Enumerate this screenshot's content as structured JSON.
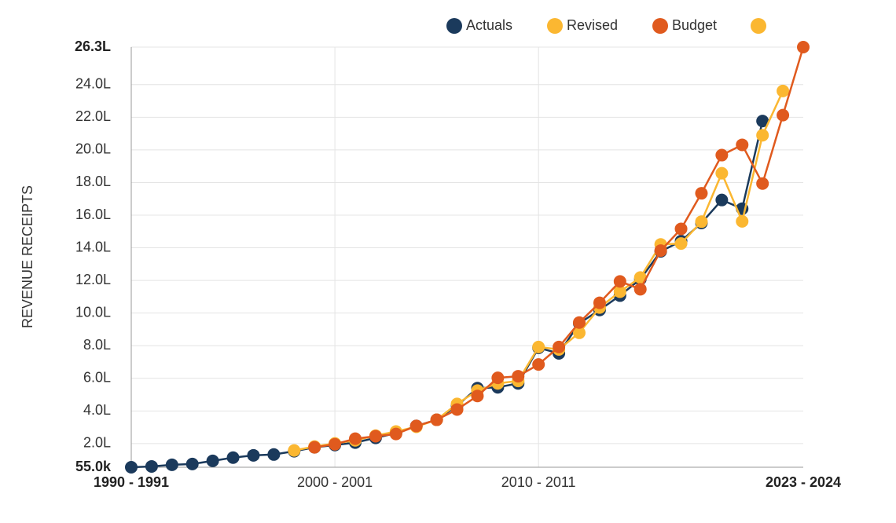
{
  "chart_data": {
    "type": "line",
    "y_label": "REVENUE RECEIPTS",
    "categories": [
      "1990 - 1991",
      null,
      null,
      null,
      null,
      null,
      null,
      null,
      null,
      null,
      "2000 - 2001",
      null,
      null,
      null,
      null,
      null,
      null,
      null,
      null,
      null,
      "2010 - 2011",
      null,
      null,
      null,
      null,
      null,
      null,
      null,
      null,
      null,
      null,
      null,
      null,
      "2023 - 2024"
    ],
    "ylim": [
      55000,
      2630000
    ],
    "yticks": [
      {
        "value": 55000,
        "label": "55.0k"
      },
      {
        "value": 200000,
        "label": "2.0L"
      },
      {
        "value": 400000,
        "label": "4.0L"
      },
      {
        "value": 600000,
        "label": "6.0L"
      },
      {
        "value": 800000,
        "label": "8.0L"
      },
      {
        "value": 1000000,
        "label": "10.0L"
      },
      {
        "value": 1200000,
        "label": "12.0L"
      },
      {
        "value": 1400000,
        "label": "14.0L"
      },
      {
        "value": 1600000,
        "label": "16.0L"
      },
      {
        "value": 1800000,
        "label": "18.0L"
      },
      {
        "value": 2000000,
        "label": "20.0L"
      },
      {
        "value": 2200000,
        "label": "22.0L"
      },
      {
        "value": 2400000,
        "label": "24.0L"
      },
      {
        "value": 2630000,
        "label": "26.3L"
      }
    ],
    "grid": true,
    "legend": "top",
    "series": [
      {
        "name": "Actuals",
        "color": "#1b3a5c",
        "values": [
          55000,
          60000,
          70000,
          75000,
          94000,
          114000,
          128000,
          133000,
          153000,
          177000,
          191000,
          206000,
          235000,
          264000,
          308000,
          346000,
          433000,
          540000,
          545000,
          569000,
          787000,
          753000,
          937000,
          1019000,
          1107000,
          1208000,
          1378000,
          1441000,
          1552000,
          1693000,
          1640000,
          2177000,
          null,
          null
        ]
      },
      {
        "name": "Revised",
        "color": "#fbb731",
        "values": [
          null,
          null,
          null,
          null,
          null,
          null,
          null,
          null,
          158000,
          182000,
          201000,
          220000,
          249000,
          274000,
          303000,
          346000,
          443000,
          525000,
          569000,
          584000,
          792000,
          777000,
          879000,
          1034000,
          1131000,
          1218000,
          1421000,
          1426000,
          1560000,
          1857000,
          1562000,
          2090000,
          2361000,
          null
        ]
      },
      {
        "name": "Budget",
        "color": "#e05a1e",
        "values": [
          null,
          null,
          null,
          null,
          null,
          null,
          null,
          null,
          null,
          177000,
          196000,
          230000,
          245000,
          259000,
          308000,
          346000,
          409000,
          492000,
          603000,
          613000,
          685000,
          792000,
          942000,
          1063000,
          1194000,
          1146000,
          1383000,
          1516000,
          1734000,
          1968000,
          2031000,
          1794000,
          2213000,
          2630000
        ]
      }
    ]
  }
}
